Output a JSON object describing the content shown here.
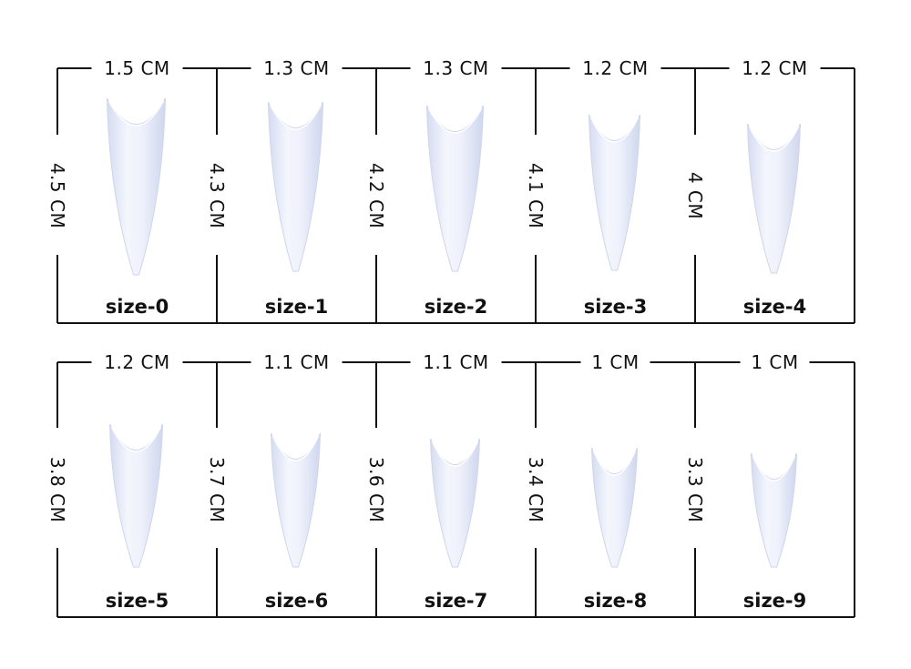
{
  "colors": {
    "background": "#ffffff",
    "line": "#111111",
    "nail_light": "#f3f5fd",
    "nail_mid": "#e4e9f8",
    "nail_shadow": "#cdd5ee"
  },
  "rows": [
    {
      "cells": [
        {
          "size": "size-0",
          "width": "1.5 CM",
          "length": "4.5 CM"
        },
        {
          "size": "size-1",
          "width": "1.3 CM",
          "length": "4.3 CM"
        },
        {
          "size": "size-2",
          "width": "1.3 CM",
          "length": "4.2 CM"
        },
        {
          "size": "size-3",
          "width": "1.2 CM",
          "length": "4.1 CM"
        },
        {
          "size": "size-4",
          "width": "1.2 CM",
          "length": "4 CM"
        }
      ]
    },
    {
      "cells": [
        {
          "size": "size-5",
          "width": "1.2 CM",
          "length": "3.8 CM"
        },
        {
          "size": "size-6",
          "width": "1.1 CM",
          "length": "3.7 CM"
        },
        {
          "size": "size-7",
          "width": "1.1 CM",
          "length": "3.6 CM"
        },
        {
          "size": "size-8",
          "width": "1 CM",
          "length": "3.4 CM"
        },
        {
          "size": "size-9",
          "width": "1 CM",
          "length": "3.3 CM"
        }
      ]
    }
  ]
}
